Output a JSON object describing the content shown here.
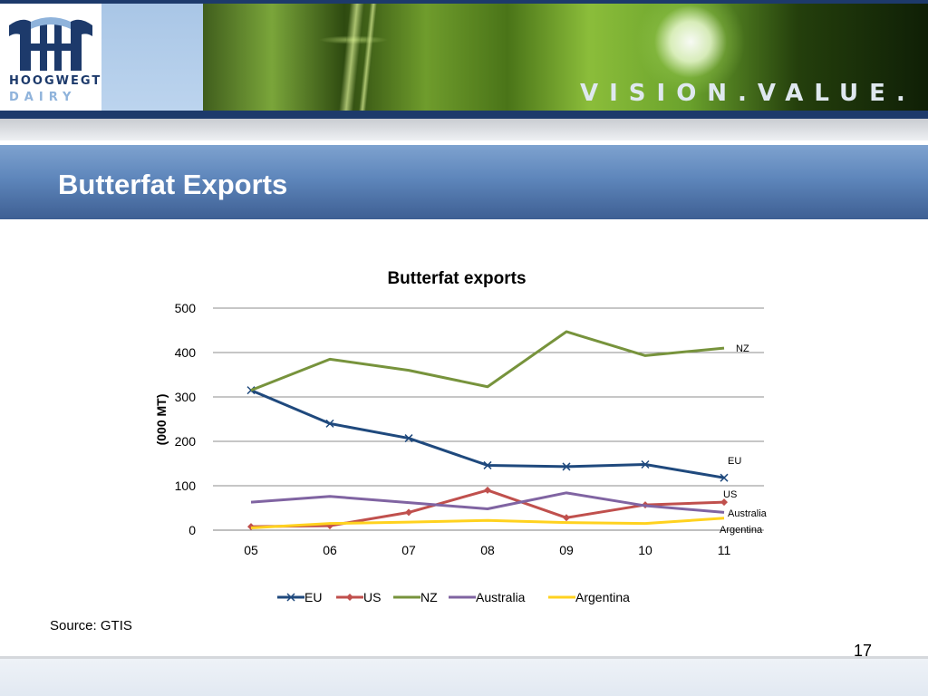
{
  "header": {
    "logo": {
      "line1": "HOOGWEGT",
      "line2": "DAIRY"
    },
    "tagline": "VISION.VALUE.",
    "colors": {
      "navy": "#1d3a6b",
      "light_blue": "#8fb3db"
    }
  },
  "slide": {
    "title": "Butterfat Exports",
    "source": "Source: GTIS",
    "page_number": "17"
  },
  "chart_data": {
    "type": "line",
    "title": "Butterfat exports",
    "xlabel": "",
    "ylabel": "(000 MT)",
    "categories": [
      "05",
      "06",
      "07",
      "08",
      "09",
      "10",
      "11"
    ],
    "ylim": [
      0,
      500
    ],
    "yticks": [
      0,
      100,
      200,
      300,
      400,
      500
    ],
    "grid": true,
    "legend_position": "bottom",
    "series": [
      {
        "name": "EU",
        "color": "#1f497d",
        "marker": "x",
        "end_label": "EU",
        "values": [
          315,
          240,
          207,
          146,
          143,
          148,
          118
        ]
      },
      {
        "name": "US",
        "color": "#c0504d",
        "marker": "diamond",
        "end_label": "US",
        "values": [
          8,
          10,
          40,
          90,
          28,
          57,
          63
        ]
      },
      {
        "name": "NZ",
        "color": "#77933c",
        "marker": "none",
        "end_label": "NZ",
        "values": [
          315,
          385,
          360,
          323,
          447,
          393,
          410
        ]
      },
      {
        "name": "Australia",
        "color": "#8064a2",
        "marker": "none",
        "end_label": "Australia",
        "values": [
          63,
          76,
          62,
          48,
          84,
          55,
          40
        ]
      },
      {
        "name": "Argentina",
        "color": "#ffd21f",
        "marker": "none",
        "end_label": "Argentina",
        "values": [
          5,
          15,
          18,
          22,
          17,
          15,
          27
        ]
      }
    ]
  }
}
